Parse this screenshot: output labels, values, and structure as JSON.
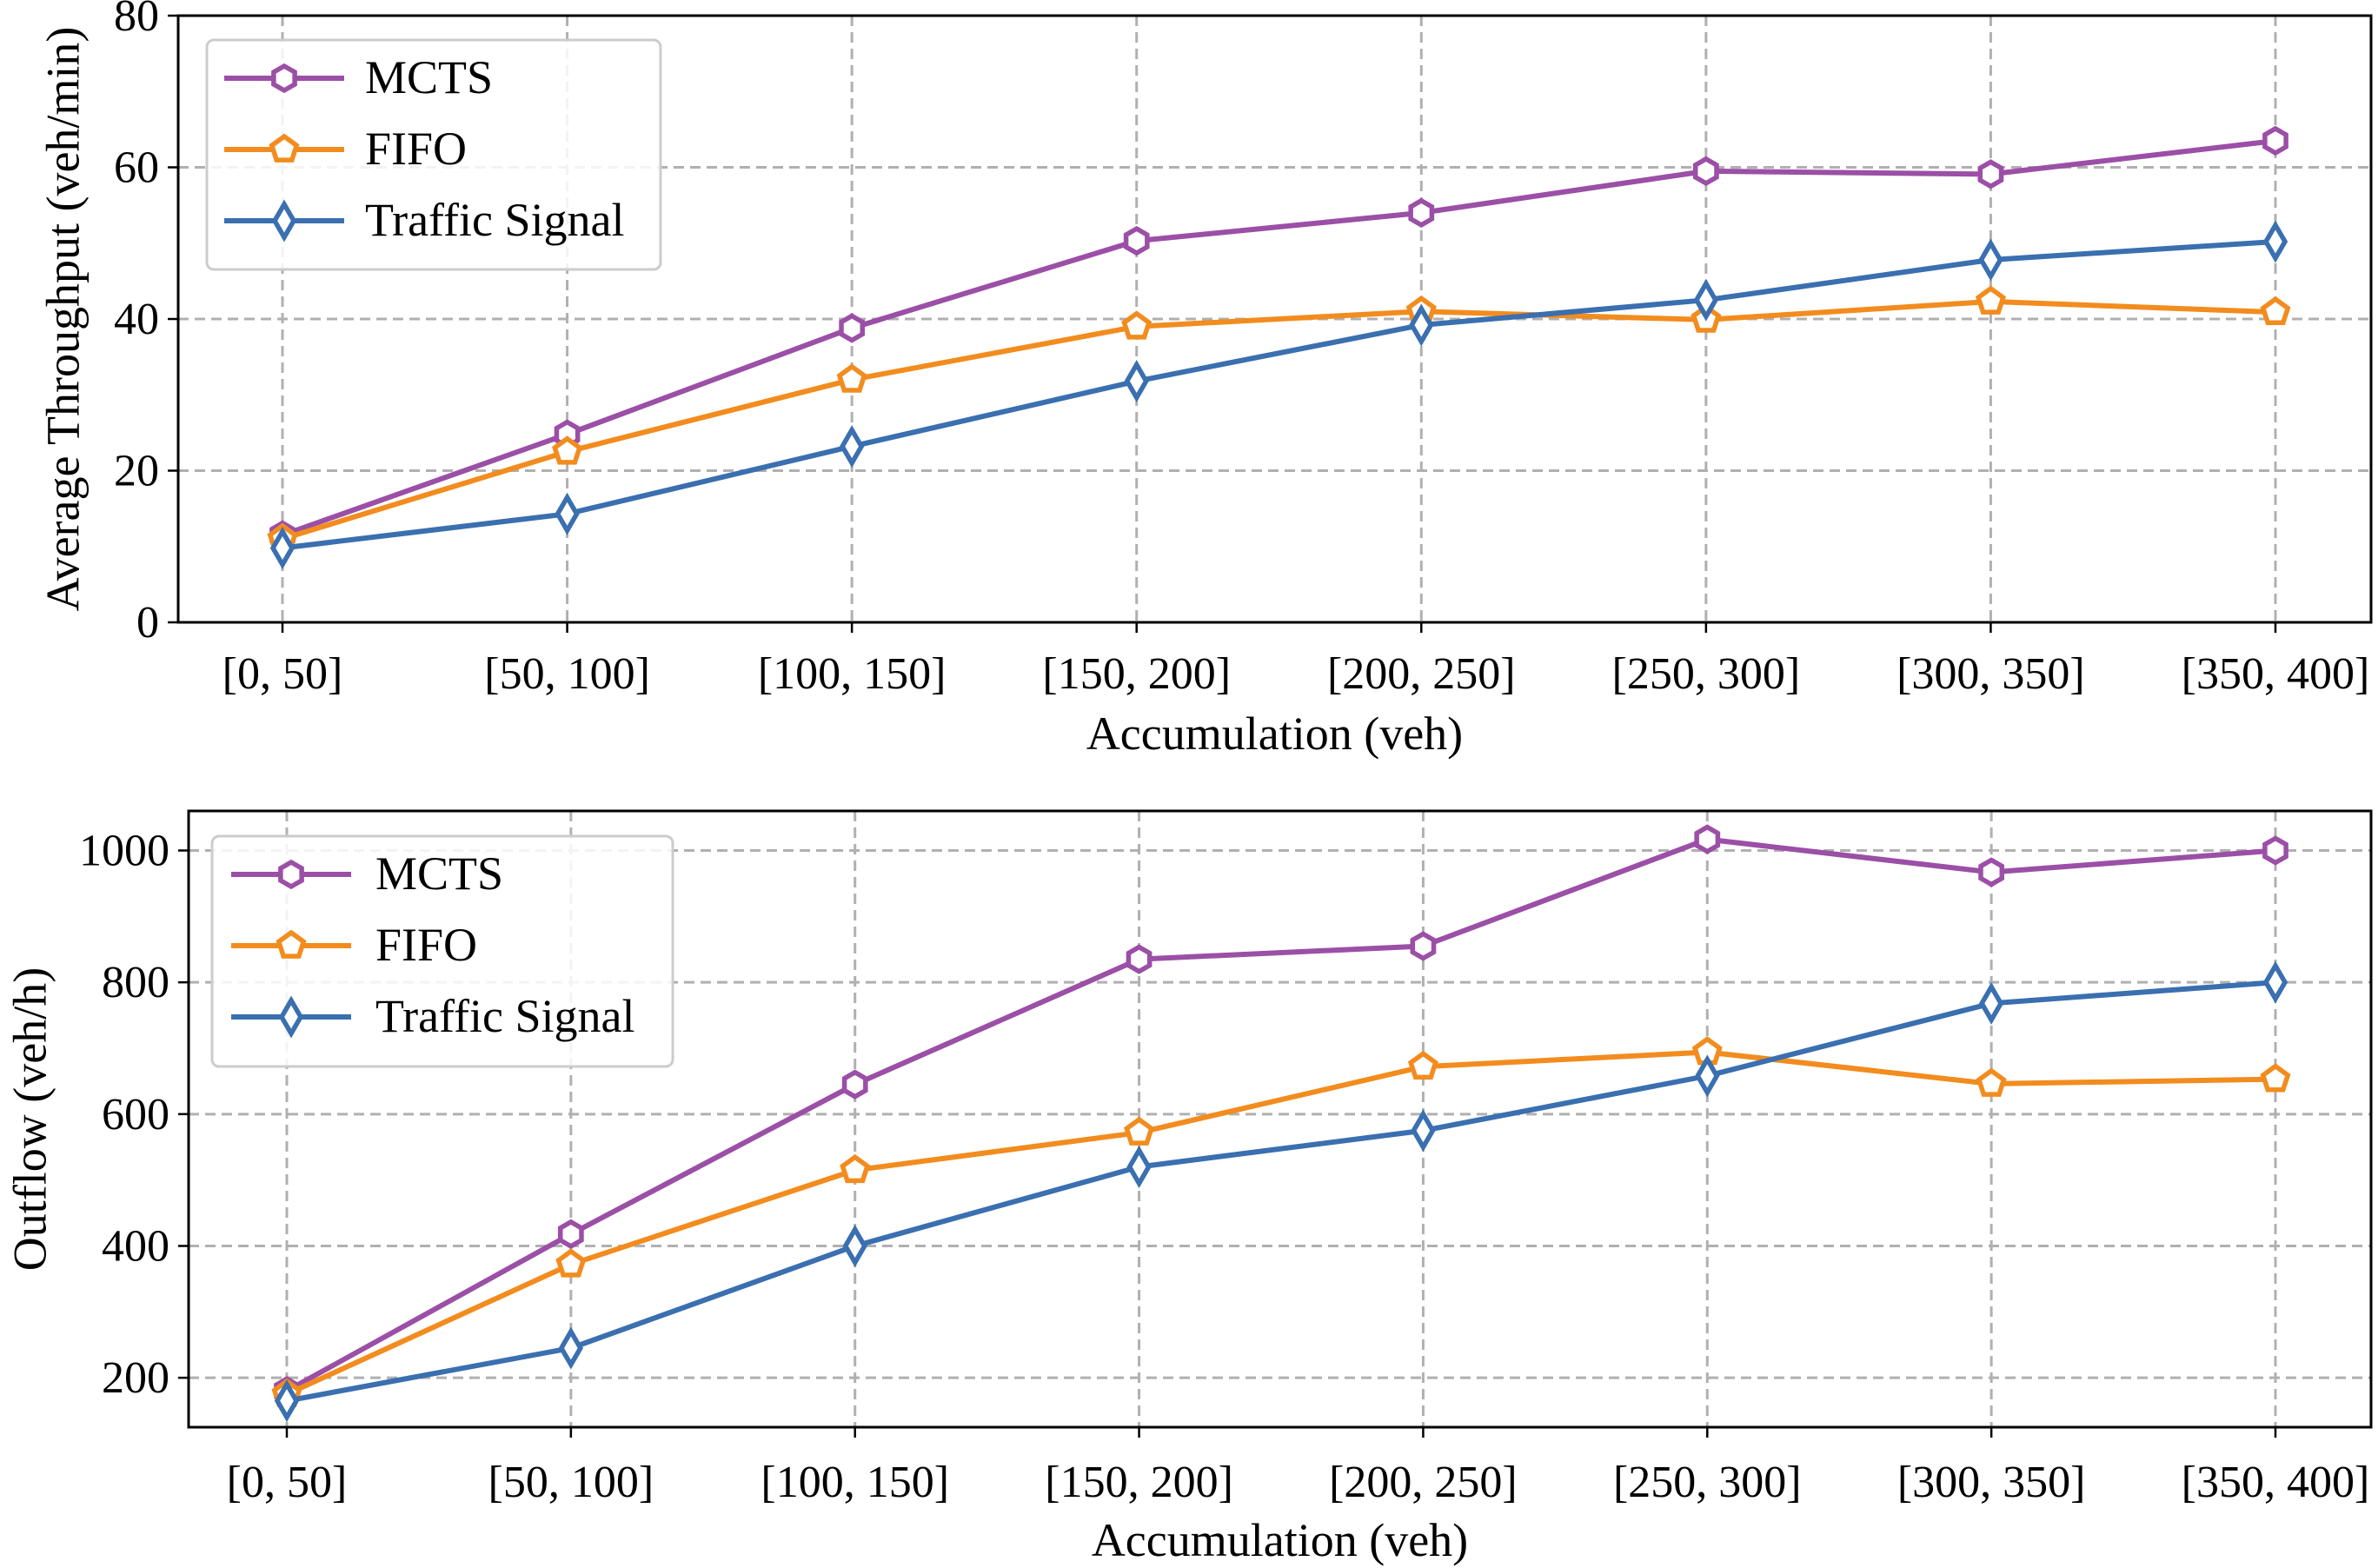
{
  "chart_data": [
    {
      "type": "line",
      "xlabel": "Accumulation (veh)",
      "ylabel": "Average Throughput (veh/min)",
      "categories": [
        "[0, 50]",
        "[50, 100]",
        "[100, 150]",
        "[150, 200]",
        "[200, 250]",
        "[250, 300]",
        "[300, 350]",
        "[350, 400]"
      ],
      "ylim": [
        0,
        80
      ],
      "yticks": [
        0,
        20,
        40,
        60,
        80
      ],
      "grid": true,
      "legend_position": "upper-left",
      "series": [
        {
          "name": "MCTS",
          "color": "#9b4fa6",
          "marker": "hexagon",
          "values": [
            11.5,
            24.8,
            38.8,
            50.3,
            54.0,
            59.5,
            59.1,
            63.5
          ]
        },
        {
          "name": "FIFO",
          "color": "#f28c1e",
          "marker": "pentagon",
          "values": [
            11.0,
            22.5,
            32.0,
            39.0,
            41.0,
            39.9,
            42.3,
            40.9
          ]
        },
        {
          "name": "Traffic Signal",
          "color": "#3a6fb0",
          "marker": "thin-diamond",
          "values": [
            9.8,
            14.3,
            23.2,
            31.8,
            39.2,
            42.5,
            47.8,
            50.2
          ]
        }
      ]
    },
    {
      "type": "line",
      "xlabel": "Accumulation (veh)",
      "ylabel": "Outflow (veh/h)",
      "categories": [
        "[0, 50]",
        "[50, 100]",
        "[100, 150]",
        "[150, 200]",
        "[200, 250]",
        "[250, 300]",
        "[300, 350]",
        "[350, 400]"
      ],
      "ylim": [
        125,
        1060
      ],
      "yticks": [
        200,
        400,
        600,
        800,
        1000
      ],
      "grid": true,
      "legend_position": "upper-left",
      "series": [
        {
          "name": "MCTS",
          "color": "#9b4fa6",
          "marker": "hexagon",
          "values": [
            180,
            418,
            645,
            835,
            855,
            1017,
            967,
            1000
          ]
        },
        {
          "name": "FIFO",
          "color": "#f28c1e",
          "marker": "pentagon",
          "values": [
            175,
            372,
            515,
            572,
            672,
            694,
            646,
            653
          ]
        },
        {
          "name": "Traffic Signal",
          "color": "#3a6fb0",
          "marker": "thin-diamond",
          "values": [
            165,
            245,
            400,
            520,
            575,
            658,
            768,
            800
          ]
        }
      ]
    }
  ]
}
